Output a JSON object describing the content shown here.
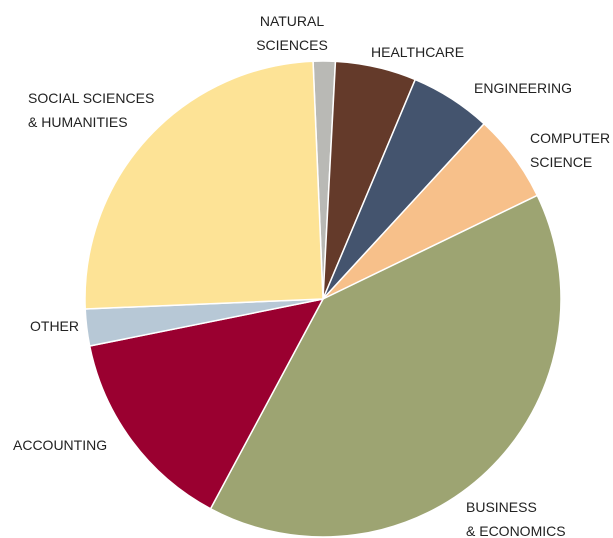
{
  "chart_data": {
    "type": "pie",
    "categories": [
      "NATURAL\nSCIENCES",
      "HEALTHCARE",
      "ENGINEERING",
      "COMPUTER\nSCIENCE",
      "BUSINESS\n& ECONOMICS",
      "ACCOUNTING",
      "OTHER",
      "SOCIAL SCIENCES\n& HUMANITIES"
    ],
    "values": [
      1.5,
      5.5,
      5.5,
      6,
      40,
      14,
      2.5,
      25
    ],
    "colors": [
      "#b9b9b5",
      "#643a2a",
      "#44546e",
      "#f7c08a",
      "#9da472",
      "#9a0030",
      "#b7c8d6",
      "#fde396"
    ]
  }
}
